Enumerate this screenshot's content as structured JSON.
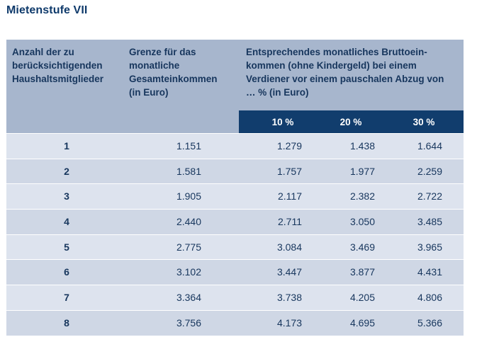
{
  "title": "Mietenstufe VII",
  "header": {
    "col_households_lines": [
      "Anzahl der zu",
      "berücksichtigenden",
      "Haushaltsmitglieder"
    ],
    "col_limit_lines": [
      "Grenze für das",
      "monatliche",
      "Gesamteinkommen",
      "(in Euro)"
    ],
    "col_gross_lines": [
      "Entsprechendes monatliches Bruttoein-",
      "kommen (ohne Kindergeld) bei einem",
      "Verdiener vor einem pauschalen Abzug von",
      "… % (in Euro)"
    ],
    "deductions": [
      "10 %",
      "20 %",
      "30 %"
    ]
  },
  "rows": [
    {
      "members": "1",
      "limit": "1.151",
      "d10": "1.279",
      "d20": "1.438",
      "d30": "1.644"
    },
    {
      "members": "2",
      "limit": "1.581",
      "d10": "1.757",
      "d20": "1.977",
      "d30": "2.259"
    },
    {
      "members": "3",
      "limit": "1.905",
      "d10": "2.117",
      "d20": "2.382",
      "d30": "2.722"
    },
    {
      "members": "4",
      "limit": "2.440",
      "d10": "2.711",
      "d20": "3.050",
      "d30": "3.485"
    },
    {
      "members": "5",
      "limit": "2.775",
      "d10": "3.084",
      "d20": "3.469",
      "d30": "3.965"
    },
    {
      "members": "6",
      "limit": "3.102",
      "d10": "3.447",
      "d20": "3.877",
      "d30": "4.431"
    },
    {
      "members": "7",
      "limit": "3.364",
      "d10": "3.738",
      "d20": "4.205",
      "d30": "4.806"
    },
    {
      "members": "8",
      "limit": "3.756",
      "d10": "4.173",
      "d20": "4.695",
      "d30": "5.366"
    }
  ]
}
